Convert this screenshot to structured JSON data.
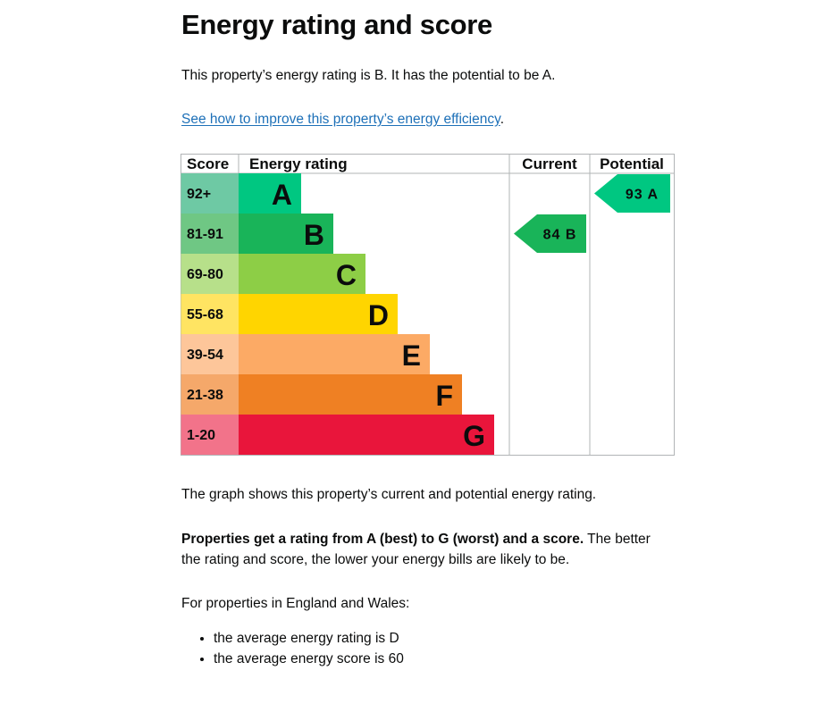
{
  "page": {
    "title": "Energy rating and score",
    "intro": "This property’s energy rating is B. It has the potential to be A.",
    "improve_link": "See how to improve this property’s energy efficiency",
    "improve_suffix": ".",
    "graph_description": "The graph shows this property’s current and potential energy rating.",
    "rating_note_bold": "Properties get a rating from A (best) to G (worst) and a score.",
    "rating_note_rest_line1": " The better",
    "rating_note_rest_line2": "the rating and score, the lower your energy bills are likely to be.",
    "region_intro": "For properties in England and Wales:",
    "averages": [
      "the average energy rating is D",
      "the average energy score is 60"
    ]
  },
  "chart_data": {
    "type": "table",
    "headers": {
      "score": "Score",
      "rating": "Energy rating",
      "current": "Current",
      "potential": "Potential"
    },
    "bands": [
      {
        "letter": "A",
        "score_range": "92+",
        "color": "#00c781",
        "score_bg": "#6ec9a4"
      },
      {
        "letter": "B",
        "score_range": "81-91",
        "color": "#19b459",
        "score_bg": "#6fc784"
      },
      {
        "letter": "C",
        "score_range": "69-80",
        "color": "#8dce46",
        "score_bg": "#b7e08a"
      },
      {
        "letter": "D",
        "score_range": "55-68",
        "color": "#ffd500",
        "score_bg": "#ffe462"
      },
      {
        "letter": "E",
        "score_range": "39-54",
        "color": "#fcaa65",
        "score_bg": "#fdc69a"
      },
      {
        "letter": "F",
        "score_range": "21-38",
        "color": "#ef8023",
        "score_bg": "#f5a86a"
      },
      {
        "letter": "G",
        "score_range": "1-20",
        "color": "#e9153b",
        "score_bg": "#f2738a"
      }
    ],
    "current": {
      "score": 84,
      "letter": "B",
      "label": "84 B",
      "color": "#19b459"
    },
    "potential": {
      "score": 93,
      "letter": "A",
      "label": "93 A",
      "color": "#00c781"
    }
  }
}
